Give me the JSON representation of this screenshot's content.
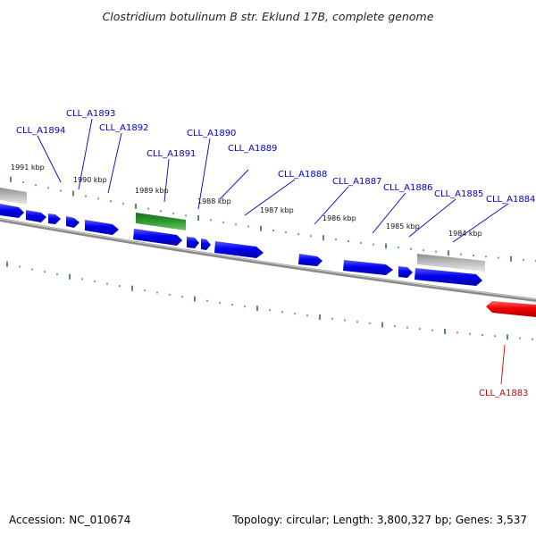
{
  "title": "Clostridium botulinum B str. Eklund 17B, complete genome",
  "footer": {
    "accession": "Accession: NC_010674",
    "info": "Topology: circular; Length: 3,800,327 bp; Genes: 3,537"
  },
  "colors": {
    "forward_gene": "#0000ee",
    "reverse_gene": "#ee0000",
    "rna_gene": "#2a8a2a",
    "pseudo_gene": "#b8b8b8",
    "label_forward": "#0000cc",
    "label_reverse": "#cc0000",
    "tick": "#2a7a2a",
    "backbone": "#8a8a8a"
  },
  "kbp_labels": [
    "1991 kbp",
    "1990 kbp",
    "1989 kbp",
    "1988 kbp",
    "1987 kbp",
    "1986 kbp",
    "1985 kbp",
    "1984 kbp"
  ],
  "gene_labels": [
    {
      "text": "CLL_A1894",
      "strand": "forward"
    },
    {
      "text": "CLL_A1893",
      "strand": "forward"
    },
    {
      "text": "CLL_A1892",
      "strand": "forward"
    },
    {
      "text": "CLL_A1891",
      "strand": "forward"
    },
    {
      "text": "CLL_A1890",
      "strand": "forward"
    },
    {
      "text": "CLL_A1889",
      "strand": "forward"
    },
    {
      "text": "CLL_A1888",
      "strand": "forward"
    },
    {
      "text": "CLL_A1887",
      "strand": "forward"
    },
    {
      "text": "CLL_A1886",
      "strand": "forward"
    },
    {
      "text": "CLL_A1885",
      "strand": "forward"
    },
    {
      "text": "CLL_A1884",
      "strand": "forward"
    },
    {
      "text": "CLL_A1883",
      "strand": "reverse"
    }
  ]
}
